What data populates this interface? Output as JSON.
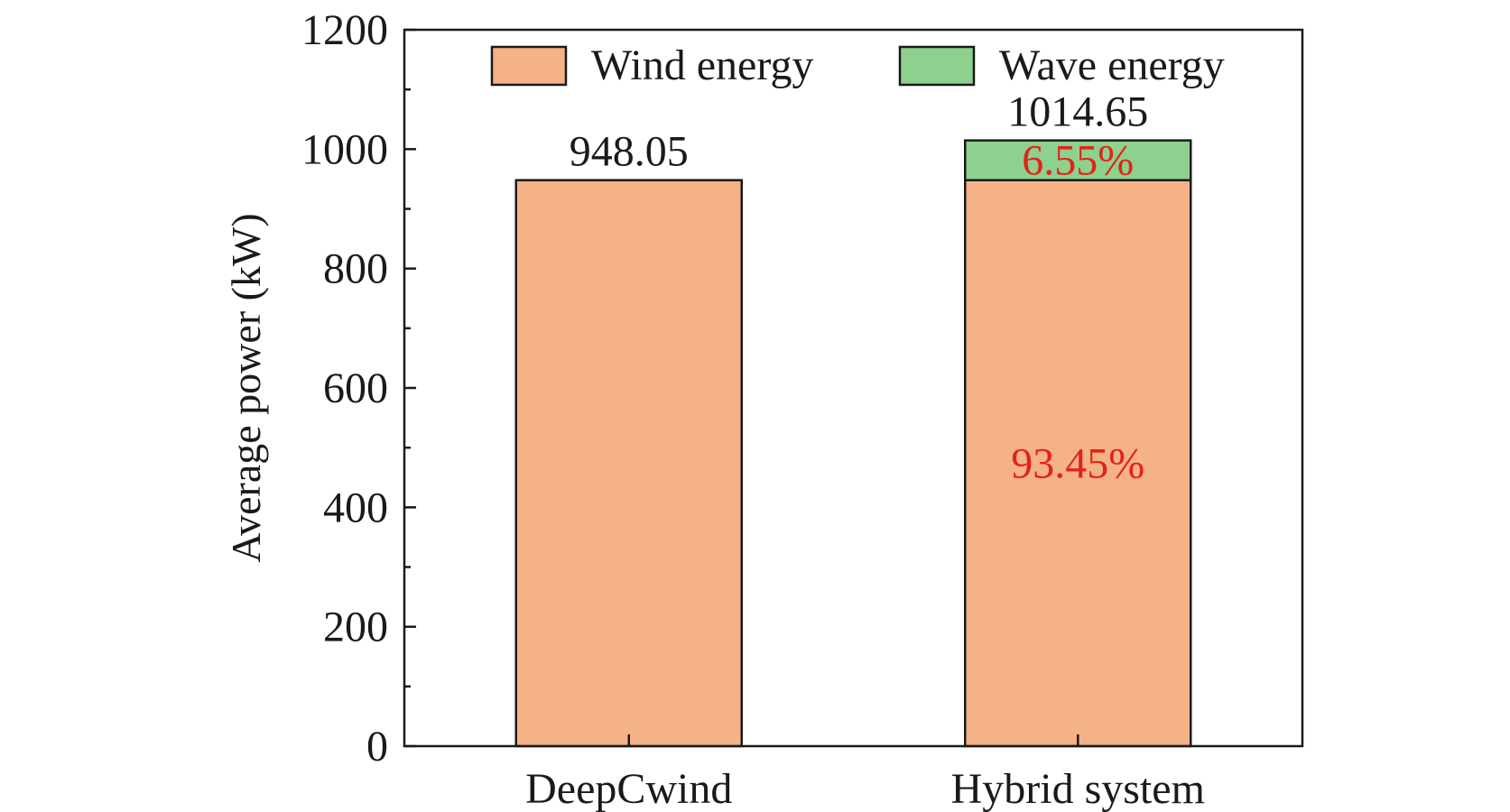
{
  "colors": {
    "wind": "#F5B286",
    "wave": "#8ED08E",
    "axis": "#1a1a1a",
    "annotation": "#E2231A"
  },
  "chart_data": {
    "type": "bar",
    "stacked": true,
    "categories": [
      "DeepCwind",
      "Hybrid system"
    ],
    "series": [
      {
        "name": "Wind energy",
        "values": [
          948.05,
          948.05
        ]
      },
      {
        "name": "Wave energy",
        "values": [
          0,
          66.6
        ]
      }
    ],
    "totals": [
      "948.05",
      "1014.65"
    ],
    "percent_labels": {
      "wind": [
        "",
        "93.45%"
      ],
      "wave": [
        "",
        "6.55%"
      ]
    },
    "ylabel": "Average power (kW)",
    "xlabel": "",
    "ylim": [
      0,
      1200
    ],
    "yticks": [
      0,
      200,
      400,
      600,
      800,
      1000,
      1200
    ],
    "legend_position": "top",
    "grid": false
  }
}
